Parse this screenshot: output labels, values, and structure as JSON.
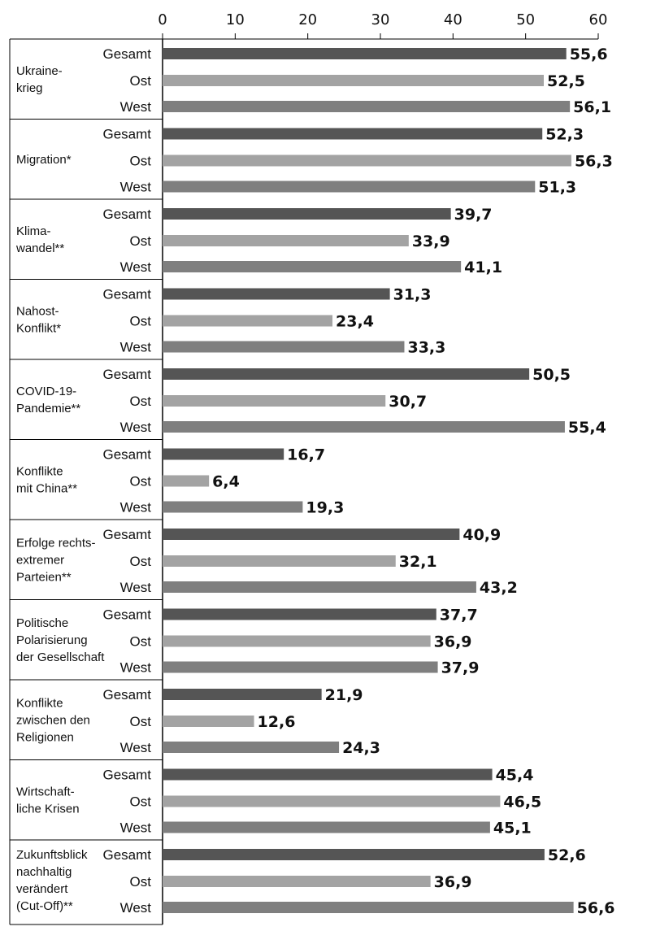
{
  "chart_data": {
    "type": "bar",
    "orientation": "horizontal",
    "xlim": [
      0,
      60
    ],
    "ticks": [
      "0",
      "10",
      "20",
      "30",
      "40",
      "50",
      "60"
    ],
    "tick_values": [
      0,
      10,
      20,
      30,
      40,
      50,
      60
    ],
    "grid": false,
    "colors": {
      "Gesamt": "#555555",
      "Ost": "#a3a3a3",
      "West": "#7f7f7f"
    },
    "groups": [
      {
        "label": [
          "Ukraine-",
          "krieg"
        ],
        "bars": [
          {
            "name": "Gesamt",
            "value": 55.6,
            "label": "55,6"
          },
          {
            "name": "Ost",
            "value": 52.5,
            "label": "52,5"
          },
          {
            "name": "West",
            "value": 56.1,
            "label": "56,1"
          }
        ]
      },
      {
        "label": [
          "Migration*"
        ],
        "bars": [
          {
            "name": "Gesamt",
            "value": 52.3,
            "label": "52,3"
          },
          {
            "name": "Ost",
            "value": 56.3,
            "label": "56,3"
          },
          {
            "name": "West",
            "value": 51.3,
            "label": "51,3"
          }
        ]
      },
      {
        "label": [
          "Klima-",
          "wandel**"
        ],
        "bars": [
          {
            "name": "Gesamt",
            "value": 39.7,
            "label": "39,7"
          },
          {
            "name": "Ost",
            "value": 33.9,
            "label": "33,9"
          },
          {
            "name": "West",
            "value": 41.1,
            "label": "41,1"
          }
        ]
      },
      {
        "label": [
          "Nahost-",
          "Konflikt*"
        ],
        "bars": [
          {
            "name": "Gesamt",
            "value": 31.3,
            "label": "31,3"
          },
          {
            "name": "Ost",
            "value": 23.4,
            "label": "23,4"
          },
          {
            "name": "West",
            "value": 33.3,
            "label": "33,3"
          }
        ]
      },
      {
        "label": [
          "COVID-19-",
          "Pandemie**"
        ],
        "bars": [
          {
            "name": "Gesamt",
            "value": 50.5,
            "label": "50,5"
          },
          {
            "name": "Ost",
            "value": 30.7,
            "label": "30,7"
          },
          {
            "name": "West",
            "value": 55.4,
            "label": "55,4"
          }
        ]
      },
      {
        "label": [
          "Konflikte",
          "mit China**"
        ],
        "bars": [
          {
            "name": "Gesamt",
            "value": 16.7,
            "label": "16,7"
          },
          {
            "name": "Ost",
            "value": 6.4,
            "label": "6,4"
          },
          {
            "name": "West",
            "value": 19.3,
            "label": "19,3"
          }
        ]
      },
      {
        "label": [
          "Erfolge rechts-",
          "extremer",
          "Parteien**"
        ],
        "bars": [
          {
            "name": "Gesamt",
            "value": 40.9,
            "label": "40,9"
          },
          {
            "name": "Ost",
            "value": 32.1,
            "label": "32,1"
          },
          {
            "name": "West",
            "value": 43.2,
            "label": "43,2"
          }
        ]
      },
      {
        "label": [
          "Politische",
          "Polarisierung",
          "der Gesellschaft"
        ],
        "bars": [
          {
            "name": "Gesamt",
            "value": 37.7,
            "label": "37,7"
          },
          {
            "name": "Ost",
            "value": 36.9,
            "label": "36,9"
          },
          {
            "name": "West",
            "value": 37.9,
            "label": "37,9"
          }
        ]
      },
      {
        "label": [
          "Konflikte",
          "zwischen den",
          "Religionen"
        ],
        "bars": [
          {
            "name": "Gesamt",
            "value": 21.9,
            "label": "21,9"
          },
          {
            "name": "Ost",
            "value": 12.6,
            "label": "12,6"
          },
          {
            "name": "West",
            "value": 24.3,
            "label": "24,3"
          }
        ]
      },
      {
        "label": [
          "Wirtschaft-",
          "liche Krisen"
        ],
        "bars": [
          {
            "name": "Gesamt",
            "value": 45.4,
            "label": "45,4"
          },
          {
            "name": "Ost",
            "value": 46.5,
            "label": "46,5"
          },
          {
            "name": "West",
            "value": 45.1,
            "label": "45,1"
          }
        ]
      },
      {
        "label": [
          "Zukunftsblick",
          "nachhaltig",
          "verändert",
          "(Cut-Off)**"
        ],
        "bars": [
          {
            "name": "Gesamt",
            "value": 52.6,
            "label": "52,6"
          },
          {
            "name": "Ost",
            "value": 36.9,
            "label": "36,9"
          },
          {
            "name": "West",
            "value": 56.6,
            "label": "56,6"
          }
        ]
      }
    ]
  }
}
